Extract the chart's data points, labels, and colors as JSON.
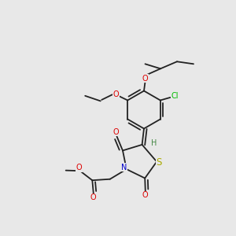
{
  "bg_color": "#e8e8e8",
  "bond_color": "#222222",
  "atom_colors": {
    "O": "#dd0000",
    "N": "#0000cc",
    "S": "#aaaa00",
    "Cl": "#00bb00",
    "H": "#448844"
  },
  "font_size": 7.0,
  "bond_lw": 1.3,
  "dbl_sep": 0.11
}
